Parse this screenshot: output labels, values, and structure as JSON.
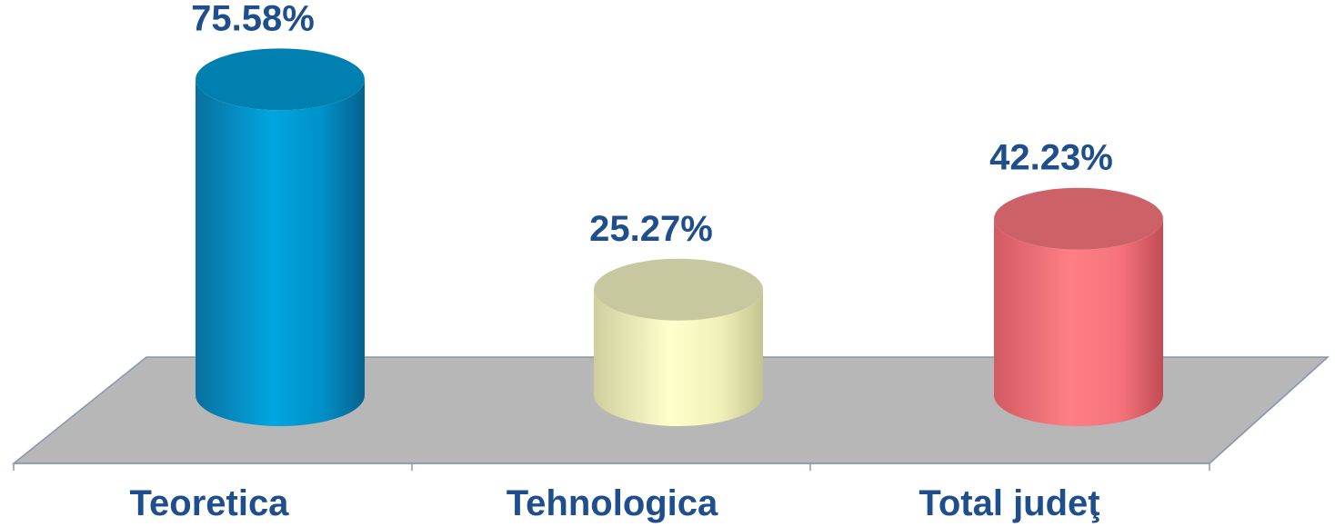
{
  "chart_data": {
    "type": "bar",
    "categories": [
      "Teoretica",
      "Tehnologica",
      "Total judeţ"
    ],
    "values": [
      75.58,
      25.27,
      42.23
    ],
    "value_labels": [
      "75.58%",
      "25.27%",
      "42.23%"
    ],
    "colors": [
      "#00a0dc",
      "#fafac8",
      "#ff7a82"
    ],
    "shape": "3d-cylinder",
    "grid": false,
    "legend": "none"
  },
  "theme": {
    "label_color": "#1f4e8c",
    "floor_color": "#b7b7b7",
    "axis_color": "#8a95b0"
  }
}
